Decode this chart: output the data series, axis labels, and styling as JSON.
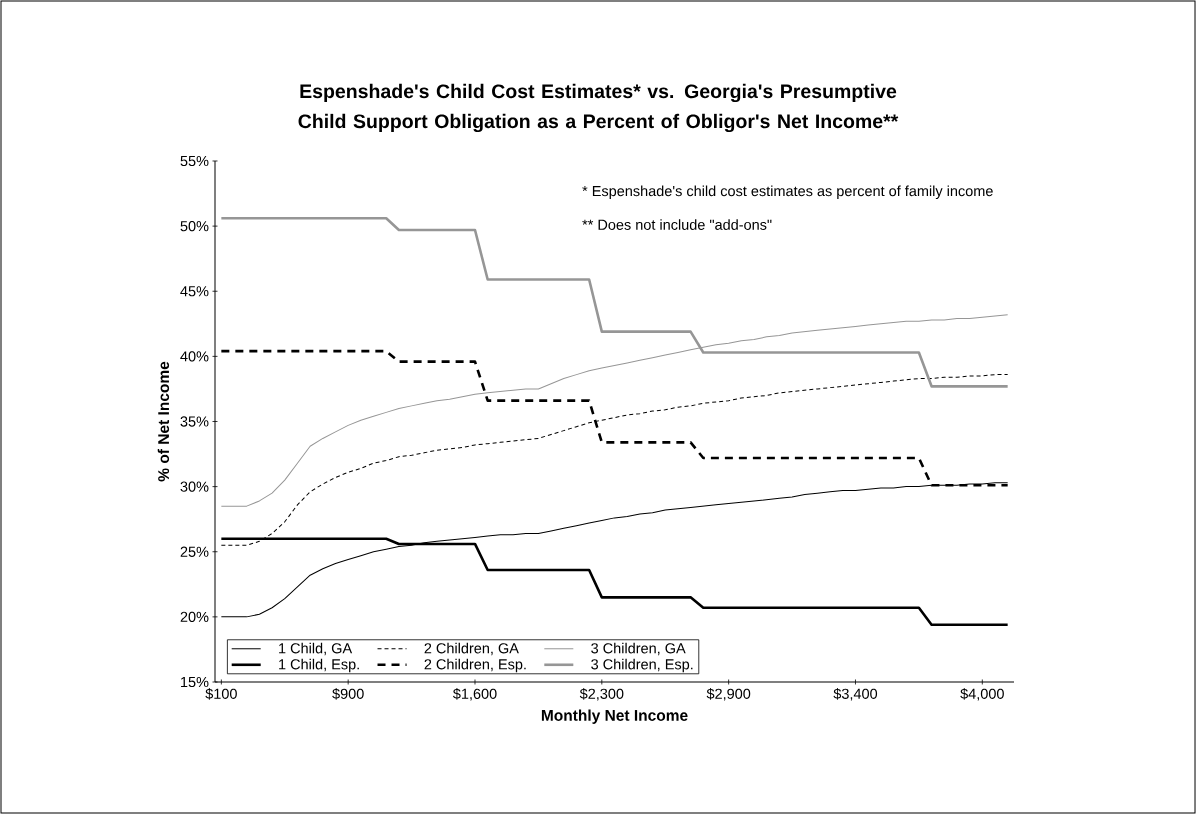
{
  "chart_data": {
    "type": "line",
    "title": "Espenshade's Child Cost Estimates* vs. Georgia's Presumptive Child Support Obligation as a Percent of Obligor's Net Income**",
    "xlabel": "Monthly Net Income",
    "ylabel": "% of Net Income",
    "annotations": [
      "*  Espenshade's child cost estimates as percent of family income",
      "**  Does not include \"add-ons\""
    ],
    "categories": [
      "$100",
      null,
      null,
      null,
      null,
      null,
      null,
      null,
      null,
      null,
      "$900",
      null,
      null,
      null,
      null,
      null,
      null,
      null,
      null,
      null,
      "$1,600",
      null,
      null,
      null,
      null,
      null,
      null,
      null,
      null,
      null,
      "$2,300",
      null,
      null,
      null,
      null,
      null,
      null,
      null,
      null,
      null,
      "$2,900",
      null,
      null,
      null,
      null,
      null,
      null,
      null,
      null,
      null,
      "$3,400",
      null,
      null,
      null,
      null,
      null,
      null,
      null,
      null,
      null,
      "$4,000",
      null,
      null
    ],
    "ylim": [
      15,
      55
    ],
    "yticks": [
      {
        "value": 15,
        "label": "15%"
      },
      {
        "value": 20,
        "label": "20%"
      },
      {
        "value": 25,
        "label": "25%"
      },
      {
        "value": 30,
        "label": "30%"
      },
      {
        "value": 35,
        "label": "35%"
      },
      {
        "value": 40,
        "label": "40%"
      },
      {
        "value": 45,
        "label": "45%"
      },
      {
        "value": 50,
        "label": "50%"
      },
      {
        "value": 55,
        "label": "55%"
      }
    ],
    "grid": false,
    "legend": "bottom left",
    "marker": "none",
    "series": [
      {
        "name": "1 Child, GA",
        "color": "#000000",
        "line_style": "solid",
        "values": [
          20.0,
          20.0,
          20.0,
          20.2,
          20.7,
          21.4,
          22.3,
          23.2,
          23.7,
          24.1,
          24.4,
          24.7,
          25.0,
          25.2,
          25.4,
          25.5,
          25.7,
          25.8,
          25.9,
          26.0,
          26.1,
          26.2,
          26.3,
          26.3,
          26.4,
          26.4,
          26.6,
          26.8,
          27.0,
          27.2,
          27.4,
          27.6,
          27.7,
          27.9,
          28.0,
          28.2,
          28.3,
          28.4,
          28.5,
          28.6,
          28.7,
          28.8,
          28.9,
          29.0,
          29.1,
          29.2,
          29.4,
          29.5,
          29.6,
          29.7,
          29.7,
          29.8,
          29.9,
          29.9,
          30.0,
          30.0,
          30.1,
          30.1,
          30.1,
          30.2,
          30.2,
          30.3,
          30.3
        ]
      },
      {
        "name": "2 Children, GA",
        "color": "#000000",
        "line_style": "dashed",
        "values": [
          25.5,
          25.5,
          25.5,
          25.8,
          26.4,
          27.3,
          28.6,
          29.6,
          30.2,
          30.7,
          31.1,
          31.4,
          31.8,
          32.0,
          32.3,
          32.4,
          32.6,
          32.8,
          32.9,
          33.0,
          33.2,
          33.3,
          33.4,
          33.5,
          33.6,
          33.7,
          34.0,
          34.3,
          34.6,
          34.9,
          35.1,
          35.3,
          35.5,
          35.6,
          35.8,
          35.9,
          36.1,
          36.2,
          36.4,
          36.5,
          36.6,
          36.8,
          36.9,
          37.0,
          37.2,
          37.3,
          37.4,
          37.5,
          37.6,
          37.7,
          37.8,
          37.9,
          38.0,
          38.1,
          38.2,
          38.3,
          38.3,
          38.4,
          38.4,
          38.5,
          38.5,
          38.6,
          38.6
        ]
      },
      {
        "name": "3 Children, GA",
        "color": "#969696",
        "line_style": "solid",
        "values": [
          28.5,
          28.5,
          28.5,
          28.9,
          29.5,
          30.5,
          31.8,
          33.1,
          33.7,
          34.2,
          34.7,
          35.1,
          35.4,
          35.7,
          36.0,
          36.2,
          36.4,
          36.6,
          36.7,
          36.9,
          37.1,
          37.2,
          37.3,
          37.4,
          37.5,
          37.5,
          37.9,
          38.3,
          38.6,
          38.9,
          39.1,
          39.3,
          39.5,
          39.7,
          39.9,
          40.1,
          40.3,
          40.5,
          40.7,
          40.9,
          41.0,
          41.2,
          41.3,
          41.5,
          41.6,
          41.8,
          41.9,
          42.0,
          42.1,
          42.2,
          42.3,
          42.4,
          42.5,
          42.6,
          42.7,
          42.7,
          42.8,
          42.8,
          42.9,
          42.9,
          43.0,
          43.1,
          43.2
        ]
      },
      {
        "name": "1 Child, Esp.",
        "color": "#000000",
        "line_style": "solid",
        "values": [
          26.0,
          26.0,
          26.0,
          26.0,
          26.0,
          26.0,
          26.0,
          26.0,
          26.0,
          26.0,
          26.0,
          26.0,
          26.0,
          26.0,
          25.6,
          25.6,
          25.6,
          25.6,
          25.6,
          25.6,
          25.6,
          23.6,
          23.6,
          23.6,
          23.6,
          23.6,
          23.6,
          23.6,
          23.6,
          23.6,
          21.5,
          21.5,
          21.5,
          21.5,
          21.5,
          21.5,
          21.5,
          21.5,
          20.7,
          20.7,
          20.7,
          20.7,
          20.7,
          20.7,
          20.7,
          20.7,
          20.7,
          20.7,
          20.7,
          20.7,
          20.7,
          20.7,
          20.7,
          20.7,
          20.7,
          20.7,
          19.4,
          19.4,
          19.4,
          19.4,
          19.4,
          19.4,
          19.4
        ]
      },
      {
        "name": "2 Children, Esp.",
        "color": "#000000",
        "line_style": "dashed",
        "values": [
          40.4,
          40.4,
          40.4,
          40.4,
          40.4,
          40.4,
          40.4,
          40.4,
          40.4,
          40.4,
          40.4,
          40.4,
          40.4,
          40.4,
          39.6,
          39.6,
          39.6,
          39.6,
          39.6,
          39.6,
          39.6,
          36.6,
          36.6,
          36.6,
          36.6,
          36.6,
          36.6,
          36.6,
          36.6,
          36.6,
          33.4,
          33.4,
          33.4,
          33.4,
          33.4,
          33.4,
          33.4,
          33.4,
          32.2,
          32.2,
          32.2,
          32.2,
          32.2,
          32.2,
          32.2,
          32.2,
          32.2,
          32.2,
          32.2,
          32.2,
          32.2,
          32.2,
          32.2,
          32.2,
          32.2,
          32.2,
          30.1,
          30.1,
          30.1,
          30.1,
          30.1,
          30.1,
          30.1
        ]
      },
      {
        "name": "3 Children, Esp.",
        "color": "#969696",
        "line_style": "solid",
        "values": [
          50.6,
          50.6,
          50.6,
          50.6,
          50.6,
          50.6,
          50.6,
          50.6,
          50.6,
          50.6,
          50.6,
          50.6,
          50.6,
          50.6,
          49.7,
          49.7,
          49.7,
          49.7,
          49.7,
          49.7,
          49.7,
          45.9,
          45.9,
          45.9,
          45.9,
          45.9,
          45.9,
          45.9,
          45.9,
          45.9,
          41.9,
          41.9,
          41.9,
          41.9,
          41.9,
          41.9,
          41.9,
          41.9,
          40.3,
          40.3,
          40.3,
          40.3,
          40.3,
          40.3,
          40.3,
          40.3,
          40.3,
          40.3,
          40.3,
          40.3,
          40.3,
          40.3,
          40.3,
          40.3,
          40.3,
          40.3,
          37.7,
          37.7,
          37.7,
          37.7,
          37.7,
          37.7,
          37.7
        ]
      }
    ]
  }
}
